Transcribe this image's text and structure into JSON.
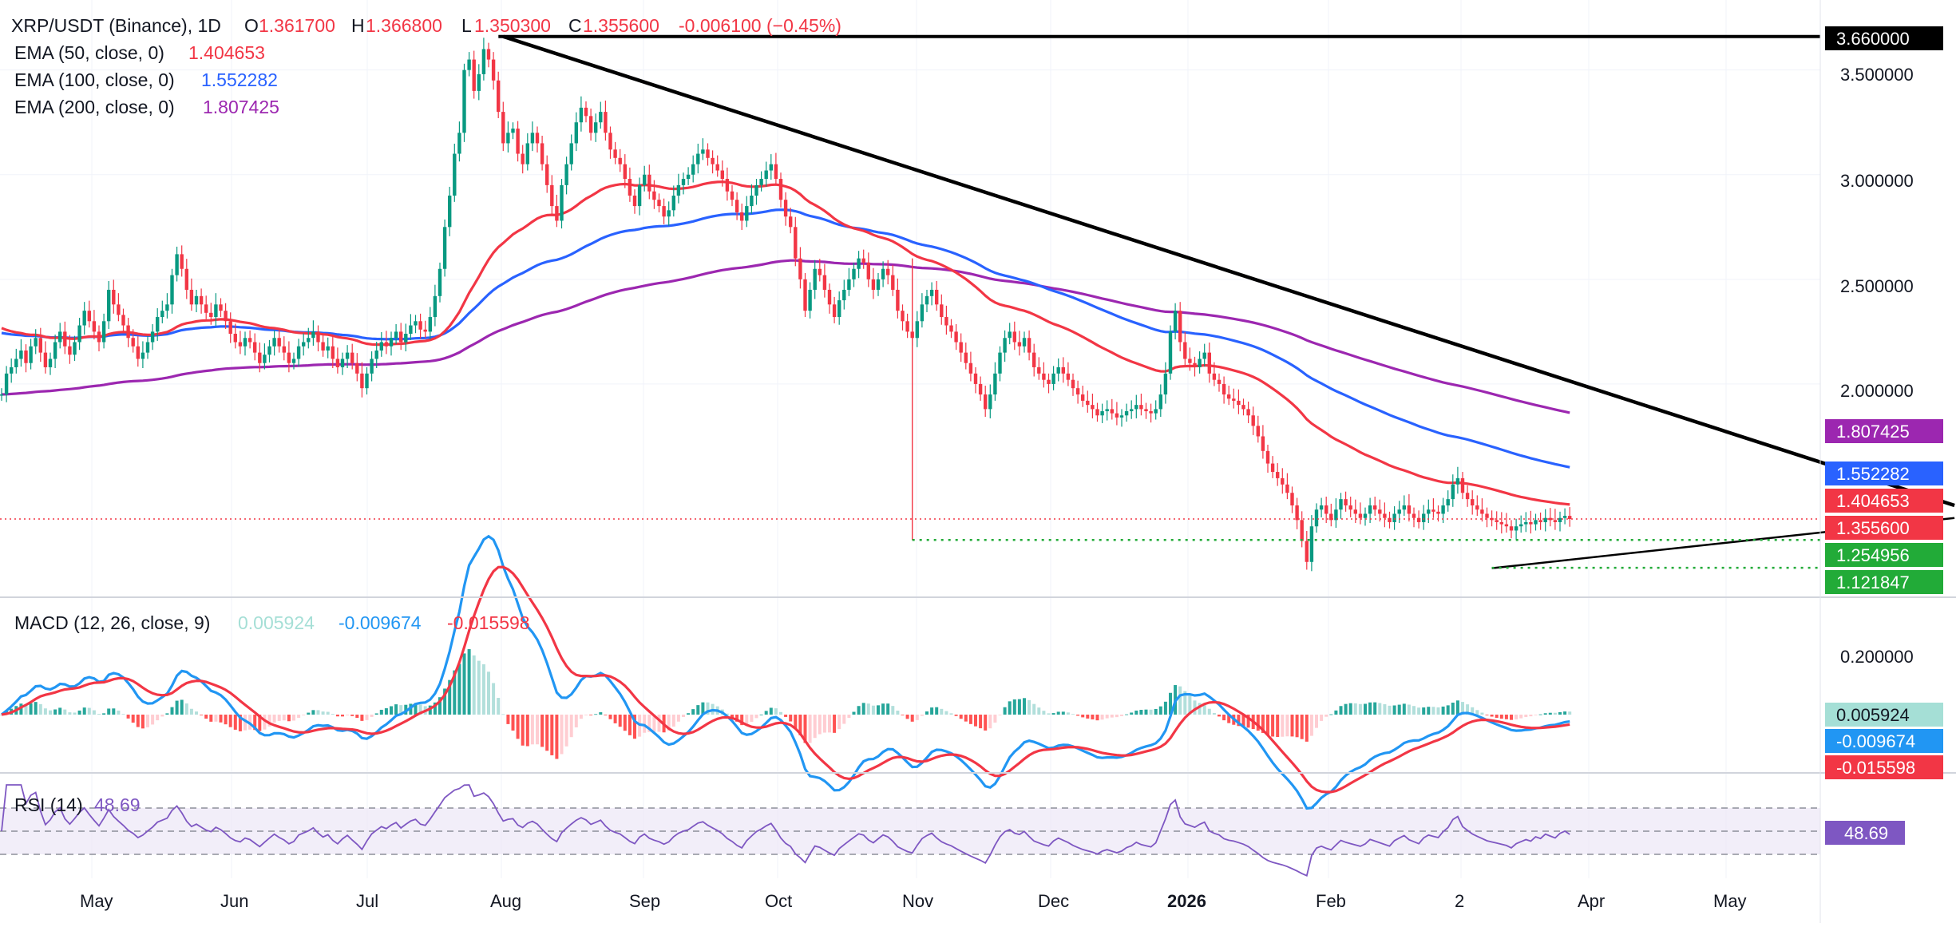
{
  "chart_data": {
    "type": "line",
    "header": {
      "symbol_label": "XRP/USDT (Binance), 1D",
      "open_prefix": "O",
      "open": "1.361700",
      "high_prefix": "H",
      "high": "1.366800",
      "low_prefix": "L",
      "low": "1.350300",
      "close_prefix": "C",
      "close": "1.355600",
      "change": "-0.006100 (−0.45%)"
    },
    "indicators": [
      {
        "label": "EMA (50, close, 0)",
        "value": "1.404653",
        "color": "#f23645"
      },
      {
        "label": "EMA (100, close, 0)",
        "value": "1.552282",
        "color": "#2962ff"
      },
      {
        "label": "EMA (200, close, 0)",
        "value": "1.807425",
        "color": "#9c27b0"
      }
    ],
    "x_axis_labels": [
      "May",
      "Jun",
      "Jul",
      "Aug",
      "Sep",
      "Oct",
      "Nov",
      "Dec",
      "2026",
      "Feb",
      "2",
      "Apr",
      "May"
    ],
    "price_axis": {
      "ticks": [
        "3.500000",
        "3.000000",
        "2.500000",
        "2.000000"
      ],
      "ylim": [
        1.05,
        3.72
      ]
    },
    "price_tags": [
      {
        "value": "3.660000",
        "color": "#000000"
      },
      {
        "value": "1.807425",
        "color": "#9c27b0"
      },
      {
        "value": "1.552282",
        "color": "#2962ff"
      },
      {
        "value": "1.404653",
        "color": "#f23645"
      },
      {
        "value": "1.355600",
        "color": "#f23645"
      },
      {
        "value": "1.254956",
        "color": "#22ab38"
      },
      {
        "value": "1.121847",
        "color": "#22ab38"
      }
    ],
    "trendlines": {
      "resistance_start": {
        "date": "2025-07-18",
        "price": 3.66
      },
      "resistance_end": {
        "date": "2026-05-12",
        "price": 1.42
      },
      "support_start": {
        "date": "2026-02-06",
        "price": 1.12
      },
      "support_end": {
        "date": "2026-05-12",
        "price": 1.36
      },
      "horizontal_top": 3.66,
      "support_levels": [
        1.254956,
        1.121847
      ]
    },
    "close_series": {
      "name": "XRP/USDT",
      "start": "2025-04-06",
      "close": [
        1.95,
        2.05,
        2.08,
        2.12,
        2.16,
        2.1,
        2.18,
        2.22,
        2.15,
        2.08,
        2.12,
        2.2,
        2.25,
        2.18,
        2.14,
        2.2,
        2.28,
        2.35,
        2.3,
        2.25,
        2.2,
        2.3,
        2.45,
        2.38,
        2.33,
        2.28,
        2.22,
        2.18,
        2.12,
        2.15,
        2.2,
        2.25,
        2.32,
        2.35,
        2.38,
        2.52,
        2.62,
        2.55,
        2.45,
        2.38,
        2.42,
        2.38,
        2.34,
        2.32,
        2.38,
        2.35,
        2.3,
        2.24,
        2.2,
        2.18,
        2.22,
        2.2,
        2.15,
        2.1,
        2.14,
        2.18,
        2.22,
        2.18,
        2.15,
        2.1,
        2.12,
        2.18,
        2.2,
        2.22,
        2.25,
        2.2,
        2.16,
        2.18,
        2.12,
        2.08,
        2.12,
        2.15,
        2.1,
        2.05,
        1.98,
        2.05,
        2.12,
        2.16,
        2.2,
        2.18,
        2.22,
        2.25,
        2.2,
        2.24,
        2.28,
        2.3,
        2.26,
        2.25,
        2.32,
        2.42,
        2.55,
        2.75,
        2.9,
        3.1,
        3.2,
        3.5,
        3.55,
        3.4,
        3.48,
        3.6,
        3.55,
        3.45,
        3.3,
        3.15,
        3.2,
        3.22,
        3.1,
        3.05,
        3.15,
        3.2,
        3.15,
        3.05,
        2.95,
        2.85,
        2.78,
        2.95,
        3.05,
        3.15,
        3.25,
        3.32,
        3.28,
        3.2,
        3.25,
        3.3,
        3.2,
        3.12,
        3.08,
        3.05,
        2.98,
        2.9,
        2.85,
        2.95,
        3.0,
        2.92,
        2.88,
        2.85,
        2.8,
        2.83,
        2.9,
        2.95,
        2.98,
        3.0,
        3.05,
        3.1,
        3.12,
        3.08,
        3.05,
        3.02,
        2.98,
        2.92,
        2.88,
        2.82,
        2.78,
        2.85,
        2.9,
        2.95,
        2.98,
        3.02,
        3.05,
        2.98,
        2.88,
        2.8,
        2.75,
        2.6,
        2.5,
        2.35,
        2.45,
        2.55,
        2.52,
        2.45,
        2.38,
        2.32,
        2.4,
        2.45,
        2.5,
        2.55,
        2.6,
        2.58,
        2.5,
        2.45,
        2.5,
        2.55,
        2.52,
        2.45,
        2.35,
        2.3,
        2.25,
        2.22,
        2.3,
        2.38,
        2.42,
        2.45,
        2.38,
        2.32,
        2.28,
        2.25,
        2.2,
        2.15,
        2.1,
        2.05,
        2.0,
        1.95,
        1.88,
        1.95,
        2.05,
        2.15,
        2.22,
        2.25,
        2.2,
        2.18,
        2.22,
        2.15,
        2.08,
        2.05,
        2.02,
        2.0,
        2.05,
        2.08,
        2.05,
        2.02,
        1.98,
        1.95,
        1.92,
        1.9,
        1.88,
        1.85,
        1.87,
        1.88,
        1.86,
        1.84,
        1.85,
        1.87,
        1.88,
        1.9,
        1.88,
        1.87,
        1.86,
        1.88,
        1.95,
        2.05,
        2.25,
        2.35,
        2.2,
        2.12,
        2.1,
        2.08,
        2.12,
        2.15,
        2.05,
        2.02,
        2.0,
        1.95,
        1.93,
        1.92,
        1.9,
        1.88,
        1.85,
        1.8,
        1.75,
        1.68,
        1.62,
        1.58,
        1.55,
        1.52,
        1.48,
        1.42,
        1.35,
        1.25,
        1.15,
        1.32,
        1.4,
        1.42,
        1.38,
        1.35,
        1.4,
        1.45,
        1.42,
        1.4,
        1.38,
        1.36,
        1.38,
        1.42,
        1.4,
        1.38,
        1.36,
        1.34,
        1.38,
        1.4,
        1.42,
        1.38,
        1.36,
        1.34,
        1.38,
        1.4,
        1.39,
        1.38,
        1.42,
        1.45,
        1.52,
        1.55,
        1.48,
        1.45,
        1.42,
        1.4,
        1.38,
        1.36,
        1.35,
        1.34,
        1.33,
        1.32,
        1.3,
        1.32,
        1.33,
        1.34,
        1.33,
        1.35,
        1.34,
        1.36,
        1.35,
        1.34,
        1.36,
        1.37,
        1.355
      ]
    },
    "macd": {
      "label": "MACD (12, 26, close, 9)",
      "hist_label": "0.005924",
      "macd_label": "-0.009674",
      "signal_label": "-0.015598",
      "ticks": [
        "0.200000"
      ],
      "colors": {
        "hist": "#a5dfd6",
        "macd": "#2196f3",
        "signal": "#f23645"
      }
    },
    "rsi": {
      "label": "RSI (14)",
      "value": "48.69",
      "color": "#7e57c2"
    }
  }
}
